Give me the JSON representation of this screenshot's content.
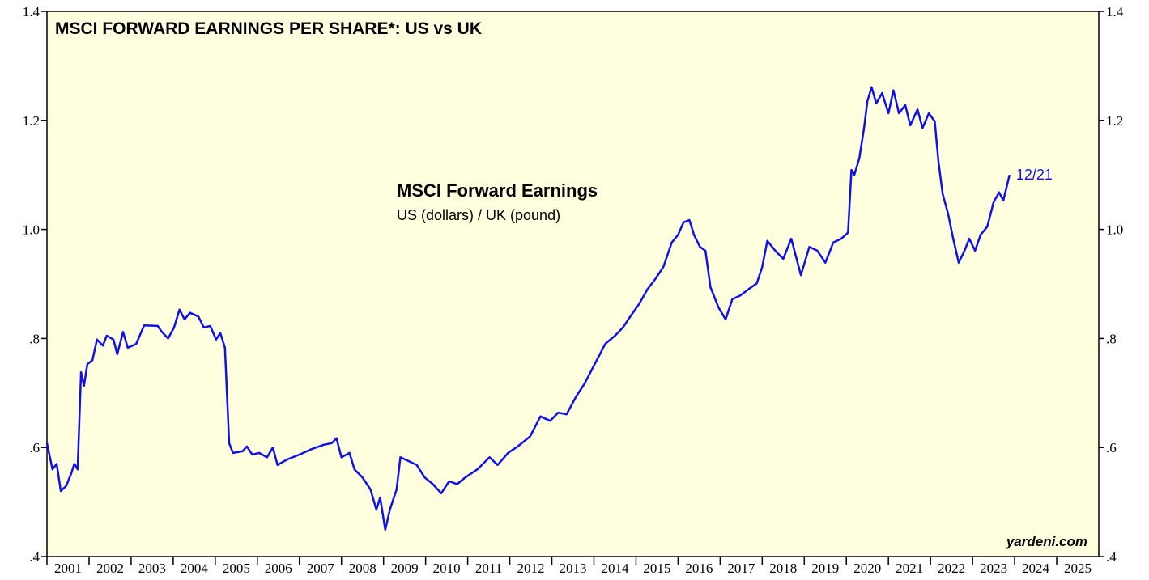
{
  "chart_data": {
    "type": "line",
    "title": "MSCI FORWARD EARNINGS PER SHARE*: US vs UK",
    "subtitle": "MSCI Forward Earnings",
    "series_label": "US (dollars) / UK (pound)",
    "end_label": "12/21",
    "source": "yardeni.com",
    "xlim": [
      2001,
      2026
    ],
    "xticks": [
      2001,
      2002,
      2003,
      2004,
      2005,
      2006,
      2007,
      2008,
      2009,
      2010,
      2011,
      2012,
      2013,
      2014,
      2015,
      2016,
      2017,
      2018,
      2019,
      2020,
      2021,
      2022,
      2023,
      2024,
      2025
    ],
    "ylim": [
      0.4,
      1.4
    ],
    "yticks": [
      {
        "value": 0.4,
        "label": ".4"
      },
      {
        "value": 0.6,
        "label": ".6"
      },
      {
        "value": 0.8,
        "label": ".8"
      },
      {
        "value": 1.0,
        "label": "1.0"
      },
      1.2,
      1.4
    ],
    "color": "#1010e8",
    "x": [
      2001.0,
      2001.13,
      2001.23,
      2001.33,
      2001.46,
      2001.58,
      2001.65,
      2001.73,
      2001.81,
      2001.88,
      2001.96,
      2002.08,
      2002.19,
      2002.33,
      2002.42,
      2002.58,
      2002.67,
      2002.81,
      2002.92,
      2003.12,
      2003.31,
      2003.63,
      2003.73,
      2003.88,
      2004.02,
      2004.15,
      2004.27,
      2004.4,
      2004.6,
      2004.73,
      2004.88,
      2005.02,
      2005.12,
      2005.23,
      2005.33,
      2005.42,
      2005.65,
      2005.75,
      2005.88,
      2006.04,
      2006.23,
      2006.37,
      2006.48,
      2006.71,
      2007.0,
      2007.29,
      2007.58,
      2007.77,
      2007.88,
      2008.0,
      2008.19,
      2008.31,
      2008.5,
      2008.69,
      2008.83,
      2008.92,
      2009.04,
      2009.15,
      2009.31,
      2009.4,
      2009.6,
      2009.79,
      2009.98,
      2010.17,
      2010.37,
      2010.56,
      2010.75,
      2010.94,
      2011.23,
      2011.52,
      2011.71,
      2011.96,
      2012.19,
      2012.48,
      2012.73,
      2012.96,
      2013.15,
      2013.35,
      2013.58,
      2013.77,
      2014.02,
      2014.27,
      2014.5,
      2014.69,
      2014.88,
      2015.08,
      2015.27,
      2015.46,
      2015.65,
      2015.85,
      2016.0,
      2016.13,
      2016.27,
      2016.38,
      2016.52,
      2016.65,
      2016.77,
      2016.96,
      2017.13,
      2017.29,
      2017.48,
      2017.67,
      2017.87,
      2018.0,
      2018.12,
      2018.31,
      2018.5,
      2018.69,
      2018.92,
      2019.12,
      2019.31,
      2019.5,
      2019.69,
      2019.88,
      2020.04,
      2020.12,
      2020.19,
      2020.31,
      2020.42,
      2020.5,
      2020.6,
      2020.71,
      2020.85,
      2021.0,
      2021.12,
      2021.25,
      2021.4,
      2021.52,
      2021.69,
      2021.81,
      2021.96,
      2022.1,
      2022.19,
      2022.29,
      2022.42,
      2022.54,
      2022.67,
      2022.81,
      2022.92,
      2023.06,
      2023.19,
      2023.35,
      2023.5,
      2023.63,
      2023.73,
      2023.88
    ],
    "values": [
      0.608,
      0.56,
      0.57,
      0.52,
      0.53,
      0.553,
      0.57,
      0.56,
      0.738,
      0.713,
      0.753,
      0.76,
      0.798,
      0.787,
      0.805,
      0.798,
      0.771,
      0.812,
      0.783,
      0.79,
      0.824,
      0.823,
      0.812,
      0.8,
      0.82,
      0.853,
      0.835,
      0.847,
      0.84,
      0.82,
      0.823,
      0.798,
      0.81,
      0.783,
      0.608,
      0.59,
      0.593,
      0.602,
      0.587,
      0.59,
      0.582,
      0.6,
      0.568,
      0.578,
      0.587,
      0.597,
      0.605,
      0.608,
      0.617,
      0.582,
      0.59,
      0.56,
      0.545,
      0.523,
      0.486,
      0.508,
      0.449,
      0.486,
      0.523,
      0.582,
      0.575,
      0.568,
      0.545,
      0.533,
      0.516,
      0.538,
      0.533,
      0.545,
      0.56,
      0.582,
      0.568,
      0.59,
      0.602,
      0.62,
      0.657,
      0.649,
      0.664,
      0.661,
      0.694,
      0.716,
      0.753,
      0.79,
      0.805,
      0.82,
      0.842,
      0.864,
      0.89,
      0.909,
      0.931,
      0.976,
      0.99,
      1.013,
      1.017,
      0.99,
      0.968,
      0.961,
      0.894,
      0.857,
      0.835,
      0.872,
      0.879,
      0.89,
      0.901,
      0.931,
      0.979,
      0.961,
      0.946,
      0.983,
      0.916,
      0.968,
      0.961,
      0.939,
      0.976,
      0.983,
      0.994,
      1.109,
      1.1,
      1.131,
      1.186,
      1.235,
      1.261,
      1.231,
      1.25,
      1.213,
      1.255,
      1.213,
      1.228,
      1.191,
      1.22,
      1.186,
      1.213,
      1.198,
      1.124,
      1.065,
      1.028,
      0.983,
      0.939,
      0.961,
      0.983,
      0.961,
      0.99,
      1.005,
      1.05,
      1.068,
      1.053,
      1.1
    ]
  }
}
